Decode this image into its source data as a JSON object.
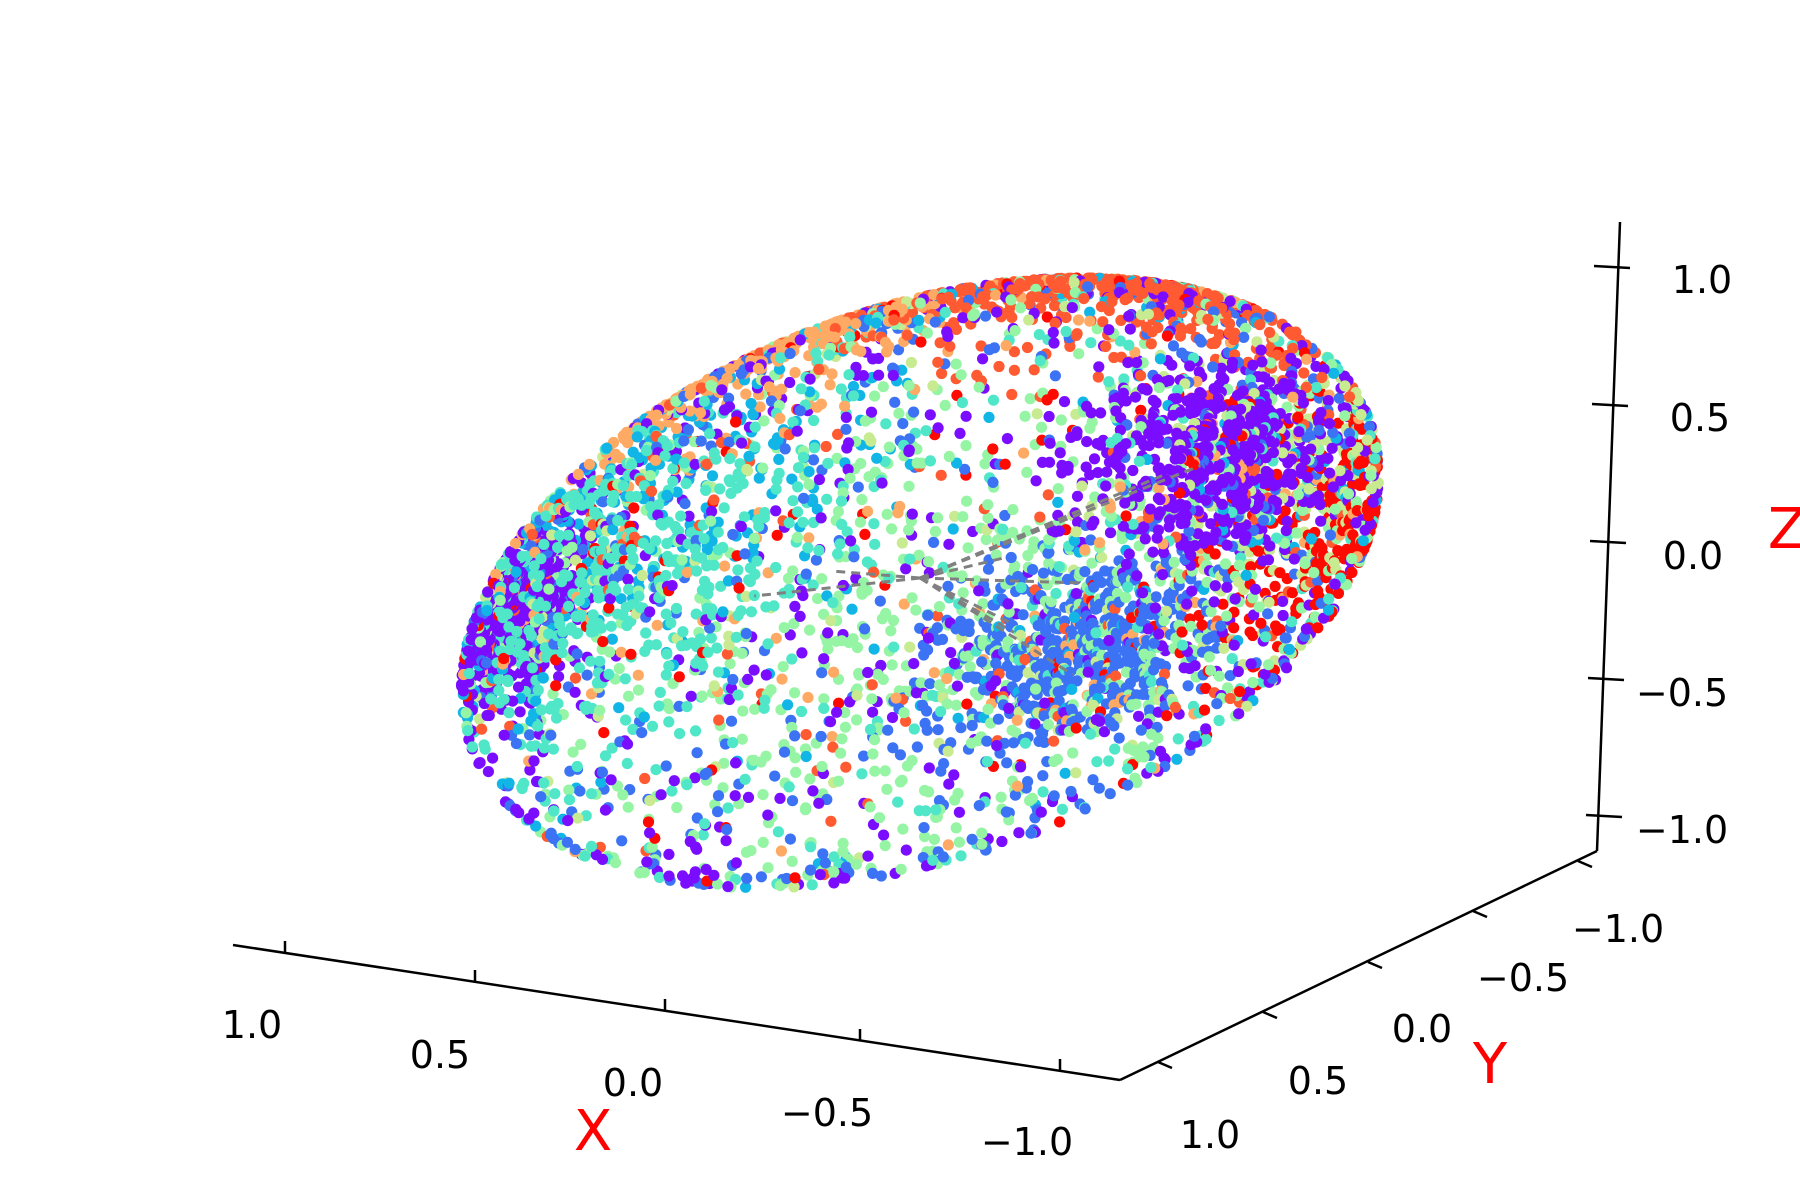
{
  "chart_data": {
    "type": "scatter",
    "projection": "3d",
    "title": "",
    "xlabel": "X",
    "ylabel": "Y",
    "zlabel": "Z",
    "xlim": [
      -1.2,
      1.2
    ],
    "ylim": [
      -1.2,
      1.2
    ],
    "zlim": [
      -1.2,
      1.2
    ],
    "x_ticks": [
      "1.0",
      "0.5",
      "0.0",
      "−0.5",
      "−1.0"
    ],
    "y_ticks": [
      "−1.0",
      "−0.5",
      "0.0",
      "0.5",
      "1.0"
    ],
    "z_ticks": [
      "1.0",
      "0.5",
      "0.0",
      "−0.5",
      "−1.0"
    ],
    "point_count_estimate": 6000,
    "point_surface": "unit sphere",
    "colormap": "rainbow",
    "connector_lines": "gray dashed lines from a central point near (0, 0, 0)",
    "grid": false,
    "legend": "none",
    "colors": {
      "label_color": "#ff0000",
      "axis_color": "#000000",
      "connector_color": "#808080",
      "palette": [
        "#7a0dff",
        "#3c73f5",
        "#12b6e6",
        "#50e6c8",
        "#96f5a5",
        "#c8eb91",
        "#ffaa64",
        "#ff5a32",
        "#ff0a00"
      ]
    }
  }
}
